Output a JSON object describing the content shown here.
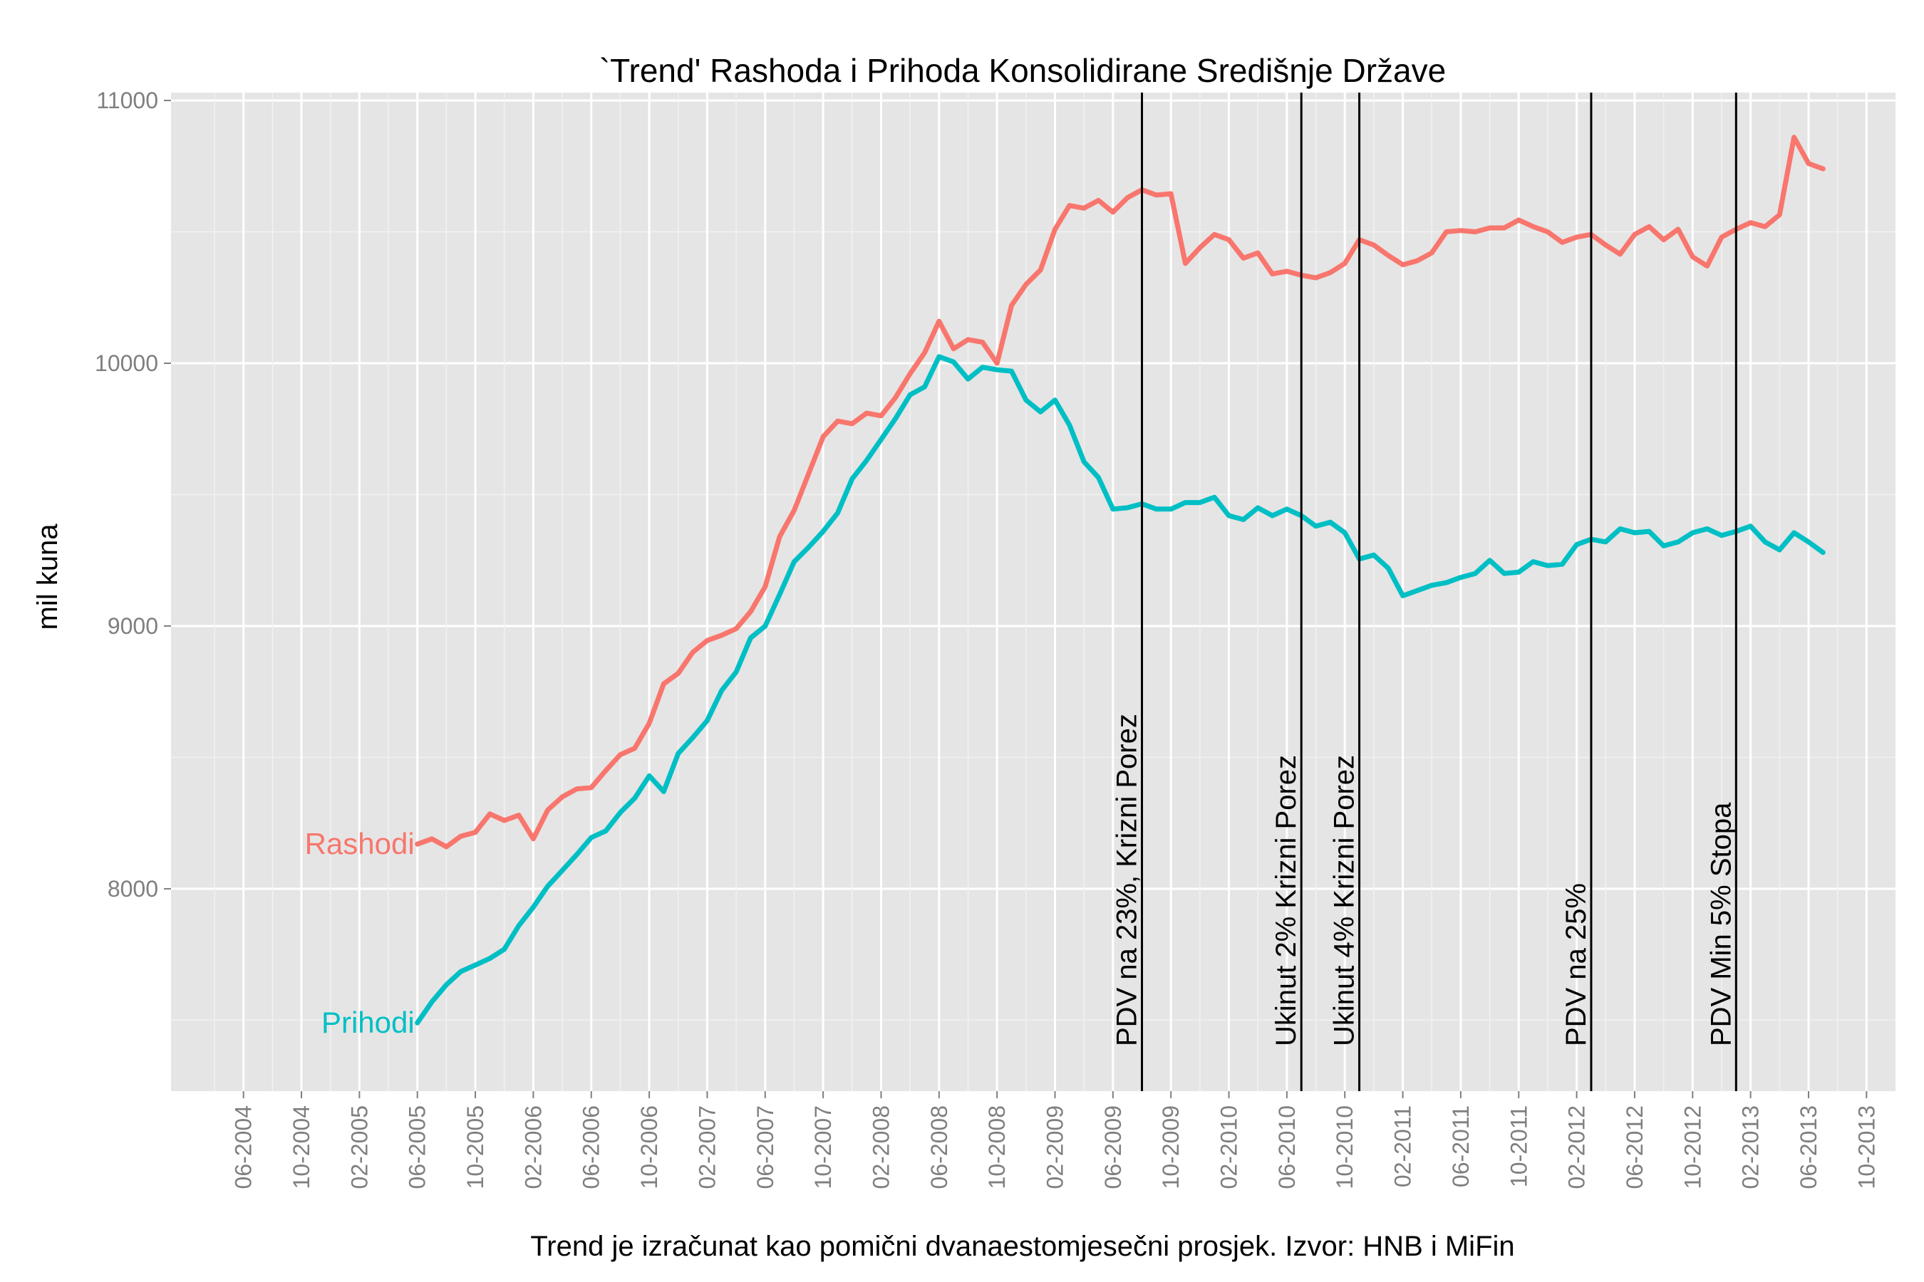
{
  "chart_data": {
    "type": "line",
    "title": "`Trend' Rashoda i Prihoda Konsolidirane Središnje Države",
    "xlabel": "Trend je izračunat kao pomični dvanaestomjesečni prosjek. Izvor: HNB i MiFin",
    "ylabel": "mil kuna",
    "x_start": "2005-06",
    "xlim": [
      "2004-01",
      "2013-12"
    ],
    "ylim": [
      7230,
      11030
    ],
    "yticks": [
      8000,
      9000,
      10000,
      11000
    ],
    "xticks": [
      "06-2004",
      "10-2004",
      "02-2005",
      "06-2005",
      "10-2005",
      "02-2006",
      "06-2006",
      "10-2006",
      "02-2007",
      "06-2007",
      "10-2007",
      "02-2008",
      "06-2008",
      "10-2008",
      "02-2009",
      "06-2009",
      "10-2009",
      "02-2010",
      "06-2010",
      "10-2010",
      "02-2011",
      "06-2011",
      "10-2011",
      "02-2012",
      "06-2012",
      "10-2012",
      "02-2013",
      "06-2013",
      "10-2013"
    ],
    "grid": true,
    "background": "#e5e5e5",
    "series": [
      {
        "name": "Rashodi",
        "color": "#f8766d",
        "values": [
          8170,
          8190,
          8160,
          8200,
          8215,
          8285,
          8260,
          8280,
          8190,
          8300,
          8350,
          8380,
          8385,
          8450,
          8510,
          8535,
          8630,
          8780,
          8820,
          8900,
          8945,
          8965,
          8990,
          9055,
          9150,
          9340,
          9440,
          9580,
          9720,
          9780,
          9770,
          9810,
          9800,
          9870,
          9960,
          10040,
          10160,
          10055,
          10090,
          10080,
          10000,
          10220,
          10300,
          10355,
          10510,
          10600,
          10590,
          10620,
          10575,
          10630,
          10660,
          10640,
          10645,
          10380,
          10440,
          10490,
          10470,
          10400,
          10420,
          10340,
          10350,
          10335,
          10325,
          10345,
          10380,
          10470,
          10450,
          10410,
          10375,
          10390,
          10420,
          10500,
          10505,
          10500,
          10515,
          10515,
          10545,
          10520,
          10500,
          10460,
          10480,
          10490,
          10450,
          10415,
          10490,
          10520,
          10470,
          10510,
          10405,
          10370,
          10480,
          10510,
          10535,
          10520,
          10565,
          10860,
          10760,
          10740
        ]
      },
      {
        "name": "Prihodi",
        "color": "#00bfc4",
        "values": [
          7490,
          7570,
          7635,
          7685,
          7710,
          7735,
          7770,
          7860,
          7930,
          8010,
          8070,
          8130,
          8195,
          8220,
          8290,
          8345,
          8430,
          8370,
          8515,
          8575,
          8640,
          8755,
          8825,
          8955,
          9000,
          9120,
          9245,
          9300,
          9360,
          9430,
          9560,
          9630,
          9710,
          9790,
          9880,
          9910,
          10025,
          10005,
          9940,
          9985,
          9975,
          9970,
          9860,
          9815,
          9860,
          9765,
          9625,
          9565,
          9445,
          9450,
          9465,
          9445,
          9445,
          9470,
          9470,
          9490,
          9420,
          9405,
          9450,
          9420,
          9445,
          9420,
          9380,
          9395,
          9355,
          9255,
          9270,
          9220,
          9115,
          9135,
          9155,
          9165,
          9185,
          9200,
          9250,
          9200,
          9205,
          9245,
          9230,
          9235,
          9310,
          9330,
          9320,
          9370,
          9355,
          9360,
          9305,
          9320,
          9355,
          9370,
          9345,
          9360,
          9380,
          9320,
          9290,
          9355,
          9320,
          9280
        ]
      }
    ],
    "annotations": [
      {
        "date": "2009-08",
        "label": "PDV na 23%, Krizni Porez"
      },
      {
        "date": "2010-07",
        "label": "Ukinut 2% Krizni Porez"
      },
      {
        "date": "2010-11",
        "label": "Ukinut 4% Krizni Porez"
      },
      {
        "date": "2012-03",
        "label": "PDV na 25%"
      },
      {
        "date": "2013-01",
        "label": "PDV Min 5% Stopa"
      }
    ],
    "legend": "direct labels at series start"
  }
}
